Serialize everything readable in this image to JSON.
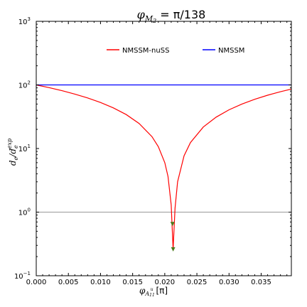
{
  "chart_data": {
    "type": "line",
    "title": "φ_M2 = π/138",
    "title_parts": {
      "main": "φ",
      "sub": "M",
      "subsub": "2",
      "rest": " = π/138"
    },
    "xlabel": "φ_A11^u [π]",
    "xlabel_parts": {
      "main": "φ",
      "sub": "A",
      "subsub": "11",
      "sup": "u",
      "rest": " [π]"
    },
    "ylabel": "d_e/d_e^exp",
    "ylabel_parts": {
      "a": "d",
      "a_sub": "e",
      "slash": "/d",
      "b_sub": "e",
      "b_sup": "exp"
    },
    "xlim": [
      0,
      0.0397
    ],
    "ylim": [
      0.1,
      1000
    ],
    "yscale": "log",
    "x_ticks": [
      0.0,
      0.005,
      0.01,
      0.015,
      0.02,
      0.025,
      0.03,
      0.035
    ],
    "x_tick_labels": [
      "0.000",
      "0.005",
      "0.010",
      "0.015",
      "0.020",
      "0.025",
      "0.030",
      "0.035"
    ],
    "y_ticks": [
      0.1,
      1,
      10,
      100,
      1000
    ],
    "y_tick_labels": [
      {
        "base": "10",
        "exp": "−1"
      },
      {
        "base": "10",
        "exp": "0"
      },
      {
        "base": "10",
        "exp": "1"
      },
      {
        "base": "10",
        "exp": "2"
      },
      {
        "base": "10",
        "exp": "3"
      }
    ],
    "legend_position": "top-center",
    "reference_line": {
      "y": 1,
      "color": "#999999"
    },
    "series": [
      {
        "name": "NMSSM-nuSS",
        "color": "#ff0000",
        "x": [
          0.0,
          0.002,
          0.004,
          0.006,
          0.008,
          0.01,
          0.012,
          0.014,
          0.016,
          0.018,
          0.019,
          0.02,
          0.0205,
          0.021,
          0.0213,
          0.0216,
          0.022,
          0.023,
          0.024,
          0.026,
          0.028,
          0.03,
          0.032,
          0.034,
          0.036,
          0.038,
          0.0397
        ],
        "values": [
          100,
          90.6,
          81.2,
          71.8,
          62.4,
          53.0,
          43.6,
          34.2,
          24.8,
          15.4,
          10.7,
          6.0,
          3.65,
          1.3,
          0.26,
          1.15,
          3.0,
          7.7,
          12.4,
          21.8,
          31.2,
          40.6,
          50.0,
          59.4,
          68.8,
          78.2,
          86.2
        ]
      },
      {
        "name": "NMSSM",
        "color": "#0000ff",
        "x": [
          0.0,
          0.0397
        ],
        "values": [
          100,
          100
        ]
      }
    ],
    "markers": [
      {
        "x": 0.0212,
        "y": 0.65,
        "color": "#4a7a1a"
      },
      {
        "x": 0.0213,
        "y": 0.26,
        "color": "#4a7a1a"
      }
    ]
  }
}
